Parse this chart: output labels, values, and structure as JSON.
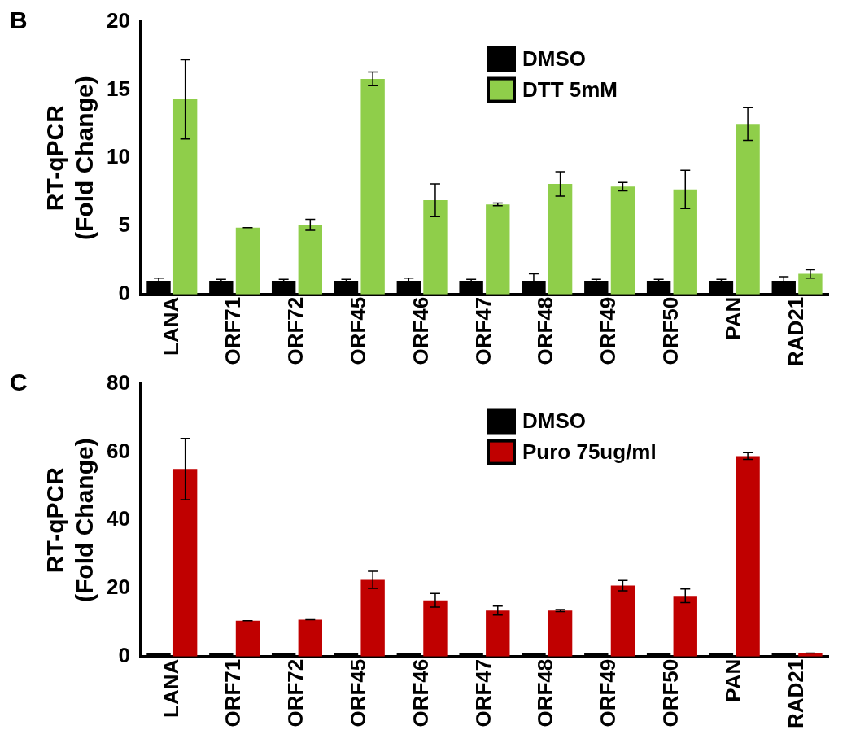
{
  "chart_data": [
    {
      "type": "bar",
      "annotations": [
        "B"
      ],
      "ylabel": "RT-qPCR\n(Fold Change)",
      "categories": [
        "LANA",
        "ORF71",
        "ORF72",
        "ORF45",
        "ORF46",
        "ORF47",
        "ORF48",
        "ORF49",
        "ORF50",
        "PAN",
        "RAD21"
      ],
      "ylim": [
        0,
        20
      ],
      "yticks": [
        0,
        5,
        10,
        15,
        20
      ],
      "grid": false,
      "legend": "top right",
      "series": [
        {
          "name": "DMSO",
          "color": "#000000",
          "values": [
            1,
            1,
            1,
            1,
            1,
            1,
            1,
            1,
            1,
            1,
            1
          ],
          "errors": [
            0.2,
            0.1,
            0.1,
            0.1,
            0.2,
            0.1,
            0.5,
            0.1,
            0.1,
            0.1,
            0.3
          ]
        },
        {
          "name": "DTT 5mM",
          "color": "#8fce4a",
          "values": [
            14.3,
            4.9,
            5.1,
            15.8,
            6.9,
            6.6,
            8.1,
            7.9,
            7.7,
            12.5,
            1.5
          ],
          "errors": [
            2.9,
            0,
            0.4,
            0.5,
            1.2,
            0.1,
            0.9,
            0.3,
            1.4,
            1.2,
            0.3
          ]
        }
      ]
    },
    {
      "type": "bar",
      "annotations": [
        "C"
      ],
      "ylabel": "RT-qPCR\n(Fold Change)",
      "categories": [
        "LANA",
        "ORF71",
        "ORF72",
        "ORF45",
        "ORF46",
        "ORF47",
        "ORF48",
        "ORF49",
        "ORF50",
        "PAN",
        "RAD21"
      ],
      "ylim": [
        0,
        80
      ],
      "yticks": [
        0,
        20,
        40,
        60,
        80
      ],
      "grid": false,
      "legend": "top right",
      "series": [
        {
          "name": "DMSO",
          "color": "#000000",
          "values": [
            1,
            1,
            1,
            1,
            1,
            1,
            1,
            1,
            1,
            1,
            1
          ]
        },
        {
          "name": "Puro 75ug/ml",
          "color": "#c00000",
          "values": [
            55,
            10.5,
            10.8,
            22.5,
            16.5,
            13.5,
            13.5,
            20.8,
            17.8,
            58.8,
            1
          ],
          "errors": [
            9,
            0,
            0,
            2.5,
            2,
            1.3,
            0.3,
            1.5,
            2,
            1,
            0
          ]
        }
      ]
    }
  ]
}
